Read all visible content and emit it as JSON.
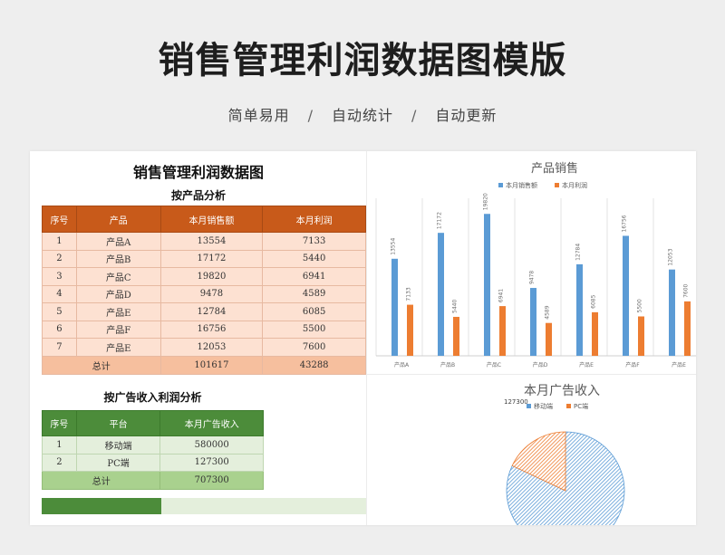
{
  "header": {
    "title": "销售管理利润数据图模版",
    "tags": [
      "简单易用",
      "自动统计",
      "自动更新"
    ],
    "separator": "/"
  },
  "sheet": {
    "title": "销售管理利润数据图",
    "product_section": {
      "title": "按产品分析",
      "columns": [
        "序号",
        "产品",
        "本月销售额",
        "本月利润"
      ],
      "rows": [
        [
          "1",
          "产品A",
          "13554",
          "7133"
        ],
        [
          "2",
          "产品B",
          "17172",
          "5440"
        ],
        [
          "3",
          "产品C",
          "19820",
          "6941"
        ],
        [
          "4",
          "产品D",
          "9478",
          "4589"
        ],
        [
          "5",
          "产品E",
          "12784",
          "6085"
        ],
        [
          "6",
          "产品F",
          "16756",
          "5500"
        ],
        [
          "7",
          "产品E",
          "12053",
          "7600"
        ]
      ],
      "total_label": "总计",
      "total_sales": "101617",
      "total_profit": "43288"
    },
    "ad_section": {
      "title": "按广告收入利润分析",
      "columns": [
        "序号",
        "平台",
        "本月广告收入"
      ],
      "rows": [
        [
          "1",
          "移动端",
          "580000"
        ],
        [
          "2",
          "PC端",
          "127300"
        ]
      ],
      "total_label": "总计",
      "total_value": "707300"
    }
  },
  "colors": {
    "orange_header": "#c85a1a",
    "green_header": "#4c8c3a",
    "series_sales": "#5b9bd5",
    "series_profit": "#ed7d31"
  },
  "chart_data": [
    {
      "type": "bar",
      "title": "产品销售",
      "categories": [
        "产品A",
        "产品B",
        "产品C",
        "产品D",
        "产品E",
        "产品F",
        "产品E"
      ],
      "series": [
        {
          "name": "本月销售额",
          "values": [
            13554,
            17172,
            19820,
            9478,
            12784,
            16756,
            12053
          ],
          "color": "#5b9bd5"
        },
        {
          "name": "本月利润",
          "values": [
            7133,
            5440,
            6941,
            4589,
            6085,
            5500,
            7600
          ],
          "color": "#ed7d31"
        }
      ],
      "ylim": [
        0,
        22000
      ],
      "grid": "vertical",
      "legend": "top"
    },
    {
      "type": "pie",
      "title": "本月广告收入",
      "labels": [
        "移动端",
        "PC端"
      ],
      "values": [
        580000,
        127300
      ],
      "data_labels": [
        "127300"
      ],
      "colors": [
        "#5b9bd5",
        "#ed7d31"
      ],
      "legend": "top"
    }
  ]
}
